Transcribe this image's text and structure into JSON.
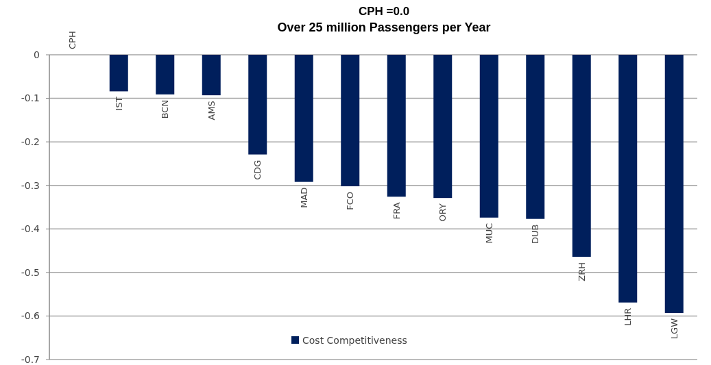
{
  "chart_data": {
    "type": "bar",
    "title": "CPH =0.0",
    "subtitle": "Over 25 million Passengers per Year",
    "categories": [
      "CPH",
      "IST",
      "BCN",
      "AMS",
      "CDG",
      "MAD",
      "FCO",
      "FRA",
      "ORY",
      "MUC",
      "DUB",
      "ZRH",
      "LHR",
      "LGW"
    ],
    "series": [
      {
        "name": "Cost Competitiveness",
        "color": "#001f5c",
        "values": [
          0,
          -0.084,
          -0.091,
          -0.093,
          -0.229,
          -0.292,
          -0.302,
          -0.326,
          -0.329,
          -0.374,
          -0.377,
          -0.464,
          -0.569,
          -0.593
        ]
      }
    ],
    "ylim": [
      -0.7,
      0
    ],
    "yticks": [
      0,
      -0.1,
      -0.2,
      -0.3,
      -0.4,
      -0.5,
      -0.6,
      -0.7
    ],
    "grid": "y",
    "legend": "bottom"
  }
}
